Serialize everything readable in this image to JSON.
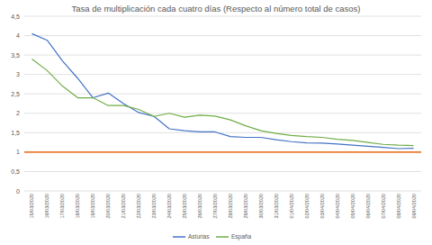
{
  "chart_data": {
    "type": "line",
    "title": "Tasa de multiplicación cada cuatro días (Respecto al número total de casos)",
    "categories": [
      "15/03/2020",
      "16/03/2020",
      "17/03/2020",
      "18/03/2020",
      "19/03/2020",
      "20/03/2020",
      "21/03/2020",
      "22/03/2020",
      "23/03/2020",
      "24/03/2020",
      "25/03/2020",
      "26/03/2020",
      "27/03/2020",
      "28/03/2020",
      "29/03/2020",
      "30/03/2020",
      "31/03/2020",
      "01/04/2020",
      "02/04/2020",
      "03/04/2020",
      "04/04/2020",
      "05/04/2020",
      "06/04/2020",
      "07/04/2020",
      "08/04/2020",
      "09/04/2020"
    ],
    "series": [
      {
        "name": "Asturias",
        "color": "#4472c4",
        "values": [
          4.05,
          3.88,
          3.35,
          2.9,
          2.4,
          2.52,
          2.25,
          2.02,
          1.92,
          1.6,
          1.55,
          1.52,
          1.52,
          1.4,
          1.38,
          1.38,
          1.32,
          1.27,
          1.24,
          1.23,
          1.21,
          1.18,
          1.15,
          1.12,
          1.09,
          1.1
        ]
      },
      {
        "name": "España",
        "color": "#70ad47",
        "values": [
          3.4,
          3.1,
          2.7,
          2.4,
          2.4,
          2.2,
          2.2,
          2.1,
          1.92,
          2.0,
          1.9,
          1.95,
          1.93,
          1.83,
          1.68,
          1.55,
          1.48,
          1.43,
          1.4,
          1.38,
          1.33,
          1.3,
          1.25,
          1.2,
          1.18,
          1.17
        ]
      }
    ],
    "reference_line": {
      "value": 1,
      "color": "#ed7d31"
    },
    "ylim": [
      0,
      4.5
    ],
    "yticks": [
      0,
      {
        "value": 0.5,
        "label": "0,5"
      },
      1,
      {
        "value": 1.5,
        "label": "1,5"
      },
      2,
      {
        "value": 2.5,
        "label": "2,5"
      },
      3,
      {
        "value": 3.5,
        "label": "3,5"
      },
      4,
      {
        "value": 4.5,
        "label": "4,5"
      }
    ],
    "grid": true,
    "legend": "bottom"
  }
}
